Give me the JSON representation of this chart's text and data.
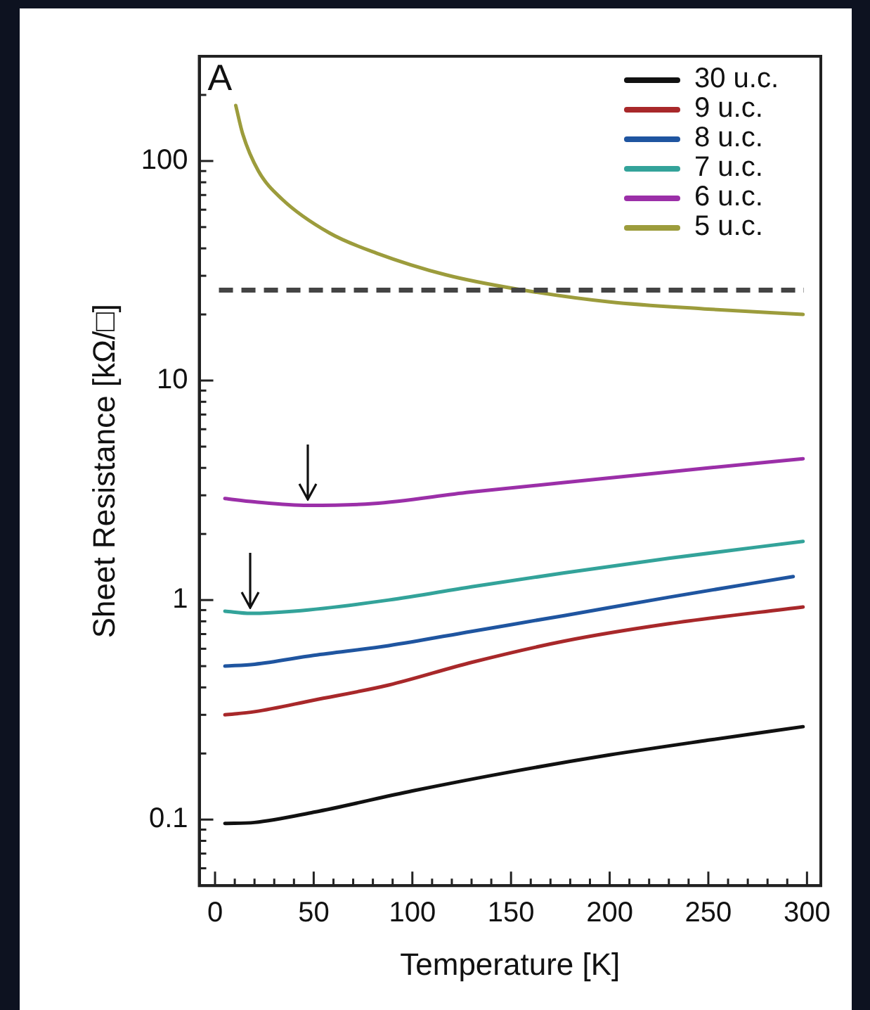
{
  "chart_data": {
    "type": "line",
    "title": "A",
    "xlabel": "Temperature [K]",
    "ylabel": "Sheet Resistance [kΩ/□]",
    "log": "y",
    "legend": "top right",
    "marker": "none",
    "line_style": "solid",
    "grid": false,
    "xlim": [
      -8,
      307
    ],
    "ylim": [
      0.05,
      300
    ],
    "xticks": [
      0,
      {
        "value": 10,
        "label": null
      },
      {
        "value": 20,
        "label": null
      },
      {
        "value": 30,
        "label": null
      },
      {
        "value": 40,
        "label": null
      },
      50,
      {
        "value": 60,
        "label": null
      },
      {
        "value": 70,
        "label": null
      },
      {
        "value": 80,
        "label": null
      },
      {
        "value": 90,
        "label": null
      },
      100,
      {
        "value": 110,
        "label": null
      },
      {
        "value": 120,
        "label": null
      },
      {
        "value": 130,
        "label": null
      },
      {
        "value": 140,
        "label": null
      },
      150,
      {
        "value": 160,
        "label": null
      },
      {
        "value": 170,
        "label": null
      },
      {
        "value": 180,
        "label": null
      },
      {
        "value": 190,
        "label": null
      },
      200,
      {
        "value": 210,
        "label": null
      },
      {
        "value": 220,
        "label": null
      },
      {
        "value": 230,
        "label": null
      },
      {
        "value": 240,
        "label": null
      },
      250,
      {
        "value": 260,
        "label": null
      },
      {
        "value": 270,
        "label": null
      },
      {
        "value": 280,
        "label": null
      },
      {
        "value": 290,
        "label": null
      },
      300
    ],
    "yticks": [
      {
        "value": 0.06,
        "label": null
      },
      {
        "value": 0.07,
        "label": null
      },
      {
        "value": 0.08,
        "label": null
      },
      {
        "value": 0.09,
        "label": null
      },
      0.1,
      {
        "value": 0.2,
        "label": null
      },
      {
        "value": 0.3,
        "label": null
      },
      {
        "value": 0.4,
        "label": null
      },
      {
        "value": 0.5,
        "label": null
      },
      {
        "value": 0.6,
        "label": null
      },
      {
        "value": 0.7,
        "label": null
      },
      {
        "value": 0.8,
        "label": null
      },
      {
        "value": 0.9,
        "label": null
      },
      1,
      {
        "value": 2,
        "label": null
      },
      {
        "value": 3,
        "label": null
      },
      {
        "value": 4,
        "label": null
      },
      {
        "value": 5,
        "label": null
      },
      {
        "value": 6,
        "label": null
      },
      {
        "value": 7,
        "label": null
      },
      {
        "value": 8,
        "label": null
      },
      {
        "value": 9,
        "label": null
      },
      10,
      {
        "value": 20,
        "label": null
      },
      {
        "value": 30,
        "label": null
      },
      {
        "value": 40,
        "label": null
      },
      {
        "value": 50,
        "label": null
      },
      {
        "value": 60,
        "label": null
      },
      {
        "value": 70,
        "label": null
      },
      {
        "value": 80,
        "label": null
      },
      {
        "value": 90,
        "label": null
      },
      100,
      {
        "value": 200,
        "label": null
      }
    ],
    "ref_lines": [
      {
        "axis": "y",
        "value": 25.8,
        "color": "#444444",
        "line_style": "dashed"
      }
    ],
    "series": [
      {
        "name": "30 u.c.",
        "color": "#111111",
        "x": [
          5,
          20,
          50,
          100,
          150,
          200,
          250,
          298
        ],
        "values": [
          0.096,
          0.097,
          0.108,
          0.135,
          0.165,
          0.197,
          0.23,
          0.265
        ]
      },
      {
        "name": "9 u.c.",
        "color": "#a8282a",
        "x": [
          5,
          20,
          50,
          88,
          130,
          177,
          230,
          298
        ],
        "values": [
          0.3,
          0.31,
          0.35,
          0.41,
          0.52,
          0.65,
          0.78,
          0.93
        ]
      },
      {
        "name": "8 u.c.",
        "color": "#1f55a0",
        "x": [
          5,
          20,
          50,
          88,
          130,
          177,
          230,
          293
        ],
        "values": [
          0.5,
          0.51,
          0.56,
          0.62,
          0.72,
          0.85,
          1.03,
          1.28
        ]
      },
      {
        "name": "7 u.c.",
        "color": "#33a39a",
        "x": [
          5,
          18,
          40,
          88,
          130,
          177,
          230,
          298
        ],
        "values": [
          0.89,
          0.87,
          0.89,
          1.0,
          1.15,
          1.33,
          1.55,
          1.85
        ]
      },
      {
        "name": "6 u.c.",
        "color": "#9b2fa8",
        "x": [
          5,
          20,
          47,
          80,
          129,
          200,
          250,
          298
        ],
        "values": [
          2.9,
          2.8,
          2.7,
          2.75,
          3.1,
          3.6,
          4.0,
          4.4
        ]
      },
      {
        "name": "5 u.c.",
        "color": "#9c9c3c",
        "x": [
          10.5,
          14,
          22,
          34,
          58,
          82,
          117,
          153,
          200,
          248,
          298
        ],
        "values": [
          179,
          133,
          90,
          67,
          47,
          38,
          30.3,
          26.1,
          22.8,
          21.2,
          20.0
        ]
      }
    ]
  }
}
